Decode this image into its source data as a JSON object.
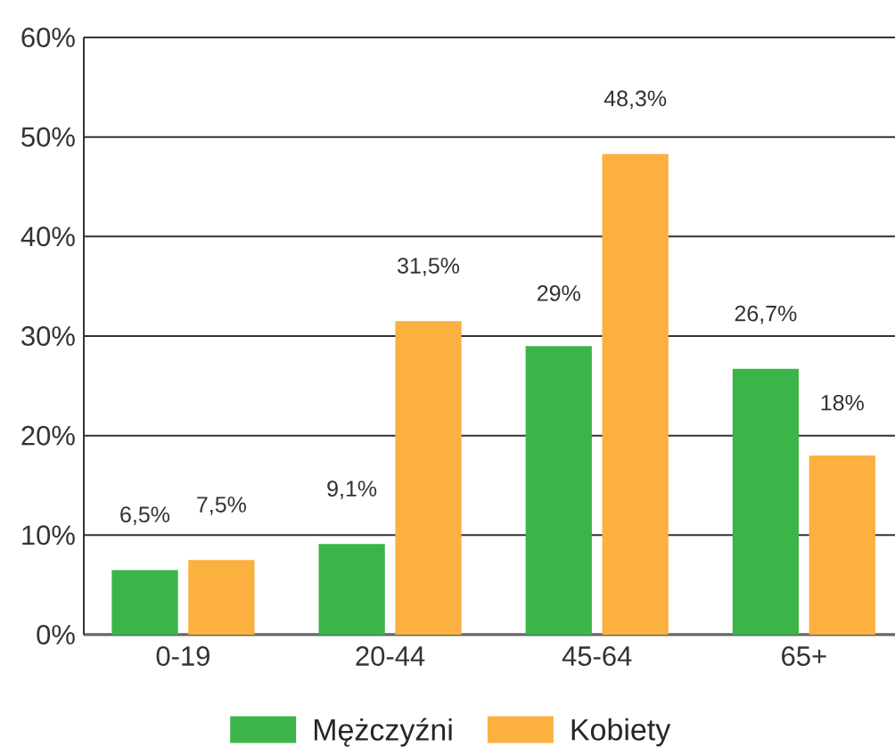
{
  "chart_data": {
    "type": "bar",
    "categories": [
      "0-19",
      "20-44",
      "45-64",
      "65+"
    ],
    "series": [
      {
        "name": "Mężczyźni",
        "color": "#3bb54a",
        "values": [
          6.5,
          9.1,
          29,
          26.7
        ],
        "value_labels": [
          "6,5%",
          "9,1%",
          "29%",
          "26,7%"
        ]
      },
      {
        "name": "Kobiety",
        "color": "#fbb040",
        "values": [
          7.5,
          31.5,
          48.3,
          18
        ],
        "value_labels": [
          "7,5%",
          "31,5%",
          "48,3%",
          "18%"
        ]
      }
    ],
    "ylim": [
      0,
      60
    ],
    "yticks": [
      {
        "value": 0,
        "label": "0%"
      },
      {
        "value": 10,
        "label": "10%"
      },
      {
        "value": 20,
        "label": "20%"
      },
      {
        "value": 30,
        "label": "30%"
      },
      {
        "value": 40,
        "label": "40%"
      },
      {
        "value": 50,
        "label": "50%"
      },
      {
        "value": 60,
        "label": "60%"
      }
    ],
    "grid": "y",
    "legend": "bottom"
  }
}
